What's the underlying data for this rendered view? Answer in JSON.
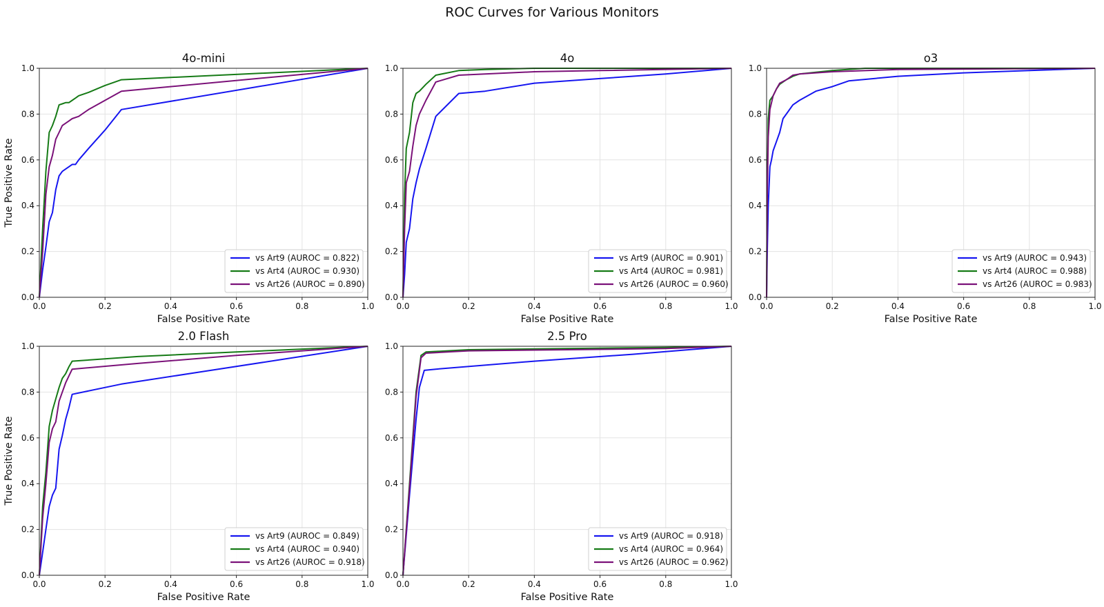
{
  "figure": {
    "title": "ROC Curves for Various Monitors"
  },
  "colors": {
    "Art9": "#1515f0",
    "Art4": "#157a15",
    "Art26": "#7a1078"
  },
  "chart_data": [
    {
      "type": "line",
      "title": "4o-mini",
      "xlabel": "False Positive Rate",
      "ylabel": "True Positive Rate",
      "xlim": [
        0,
        1
      ],
      "ylim": [
        0,
        1
      ],
      "xticks": [
        "0.0",
        "0.2",
        "0.4",
        "0.6",
        "0.8",
        "1.0"
      ],
      "yticks": [
        "0.0",
        "0.2",
        "0.4",
        "0.6",
        "0.8",
        "1.0"
      ],
      "grid": true,
      "legend_position": "lower-right",
      "series": [
        {
          "name": "vs Art9 (AUROC = 0.822)",
          "key": "Art9",
          "x": [
            0,
            0.01,
            0.02,
            0.03,
            0.04,
            0.05,
            0.06,
            0.07,
            0.08,
            0.09,
            0.1,
            0.11,
            0.12,
            0.15,
            0.2,
            0.25,
            1.0
          ],
          "y": [
            0,
            0.12,
            0.22,
            0.33,
            0.37,
            0.47,
            0.53,
            0.55,
            0.56,
            0.57,
            0.58,
            0.58,
            0.6,
            0.65,
            0.73,
            0.82,
            1.0
          ]
        },
        {
          "name": "vs Art4 (AUROC = 0.930)",
          "key": "Art4",
          "x": [
            0,
            0.01,
            0.02,
            0.03,
            0.04,
            0.05,
            0.06,
            0.07,
            0.08,
            0.09,
            0.1,
            0.11,
            0.12,
            0.15,
            0.2,
            0.25,
            1.0
          ],
          "y": [
            0,
            0.3,
            0.55,
            0.72,
            0.75,
            0.79,
            0.84,
            0.845,
            0.85,
            0.85,
            0.86,
            0.87,
            0.88,
            0.895,
            0.925,
            0.95,
            1.0
          ]
        },
        {
          "name": "vs Art26 (AUROC = 0.890)",
          "key": "Art26",
          "x": [
            0,
            0.01,
            0.02,
            0.03,
            0.04,
            0.05,
            0.06,
            0.07,
            0.08,
            0.09,
            0.1,
            0.12,
            0.15,
            0.2,
            0.25,
            1.0
          ],
          "y": [
            0,
            0.2,
            0.45,
            0.57,
            0.62,
            0.69,
            0.72,
            0.75,
            0.76,
            0.77,
            0.78,
            0.79,
            0.82,
            0.86,
            0.9,
            1.0
          ]
        }
      ]
    },
    {
      "type": "line",
      "title": "4o",
      "xlabel": "False Positive Rate",
      "ylabel": "",
      "xlim": [
        0,
        1
      ],
      "ylim": [
        0,
        1
      ],
      "xticks": [
        "0.0",
        "0.2",
        "0.4",
        "0.6",
        "0.8",
        "1.0"
      ],
      "yticks": [
        "0.0",
        "0.2",
        "0.4",
        "0.6",
        "0.8",
        "1.0"
      ],
      "grid": true,
      "legend_position": "lower-right",
      "series": [
        {
          "name": "vs Art9 (AUROC = 0.901)",
          "key": "Art9",
          "x": [
            0,
            0.005,
            0.01,
            0.02,
            0.03,
            0.04,
            0.05,
            0.07,
            0.1,
            0.17,
            0.25,
            0.4,
            0.6,
            0.8,
            1.0
          ],
          "y": [
            0,
            0.1,
            0.24,
            0.3,
            0.43,
            0.5,
            0.56,
            0.65,
            0.79,
            0.89,
            0.9,
            0.935,
            0.955,
            0.975,
            1.0
          ]
        },
        {
          "name": "vs Art4 (AUROC = 0.981)",
          "key": "Art4",
          "x": [
            0,
            0.005,
            0.01,
            0.02,
            0.03,
            0.04,
            0.05,
            0.07,
            0.1,
            0.17,
            0.25,
            0.4,
            1.0
          ],
          "y": [
            0,
            0.45,
            0.65,
            0.72,
            0.85,
            0.89,
            0.9,
            0.93,
            0.97,
            0.99,
            0.995,
            1.0,
            1.0
          ]
        },
        {
          "name": "vs Art26 (AUROC = 0.960)",
          "key": "Art26",
          "x": [
            0,
            0.005,
            0.01,
            0.02,
            0.03,
            0.04,
            0.05,
            0.07,
            0.1,
            0.17,
            0.25,
            0.4,
            0.6,
            1.0
          ],
          "y": [
            0,
            0.3,
            0.5,
            0.55,
            0.66,
            0.75,
            0.8,
            0.86,
            0.94,
            0.97,
            0.975,
            0.985,
            0.99,
            1.0
          ]
        }
      ]
    },
    {
      "type": "line",
      "title": "o3",
      "xlabel": "False Positive Rate",
      "ylabel": "",
      "xlim": [
        0,
        1
      ],
      "ylim": [
        0,
        1
      ],
      "xticks": [
        "0.0",
        "0.2",
        "0.4",
        "0.6",
        "0.8",
        "1.0"
      ],
      "yticks": [
        "0.0",
        "0.2",
        "0.4",
        "0.6",
        "0.8",
        "1.0"
      ],
      "grid": true,
      "legend_position": "lower-right",
      "series": [
        {
          "name": "vs Art9 (AUROC = 0.943)",
          "key": "Art9",
          "x": [
            0,
            0.002,
            0.005,
            0.01,
            0.015,
            0.02,
            0.03,
            0.04,
            0.05,
            0.06,
            0.08,
            0.1,
            0.15,
            0.2,
            0.25,
            0.4,
            0.6,
            0.8,
            1.0
          ],
          "y": [
            0,
            0.2,
            0.4,
            0.57,
            0.6,
            0.64,
            0.68,
            0.72,
            0.78,
            0.8,
            0.84,
            0.86,
            0.9,
            0.92,
            0.945,
            0.965,
            0.98,
            0.99,
            1.0
          ]
        },
        {
          "name": "vs Art4 (AUROC = 0.988)",
          "key": "Art4",
          "x": [
            0,
            0.002,
            0.005,
            0.01,
            0.02,
            0.03,
            0.04,
            0.06,
            0.08,
            0.1,
            0.2,
            0.3,
            1.0
          ],
          "y": [
            0,
            0.5,
            0.78,
            0.86,
            0.88,
            0.91,
            0.93,
            0.95,
            0.965,
            0.975,
            0.99,
            1.0,
            1.0
          ]
        },
        {
          "name": "vs Art26 (AUROC = 0.983)",
          "key": "Art26",
          "x": [
            0,
            0.002,
            0.005,
            0.01,
            0.02,
            0.03,
            0.04,
            0.06,
            0.08,
            0.1,
            0.2,
            0.4,
            1.0
          ],
          "y": [
            0,
            0.45,
            0.7,
            0.82,
            0.88,
            0.91,
            0.935,
            0.95,
            0.97,
            0.975,
            0.985,
            0.995,
            1.0
          ]
        }
      ]
    },
    {
      "type": "line",
      "title": "2.0 Flash",
      "xlabel": "False Positive Rate",
      "ylabel": "True Positive Rate",
      "xlim": [
        0,
        1
      ],
      "ylim": [
        0,
        1
      ],
      "xticks": [
        "0.0",
        "0.2",
        "0.4",
        "0.6",
        "0.8",
        "1.0"
      ],
      "yticks": [
        "0.0",
        "0.2",
        "0.4",
        "0.6",
        "0.8",
        "1.0"
      ],
      "grid": true,
      "legend_position": "lower-right",
      "series": [
        {
          "name": "vs Art9 (AUROC = 0.849)",
          "key": "Art9",
          "x": [
            0,
            0.01,
            0.02,
            0.03,
            0.04,
            0.05,
            0.06,
            0.07,
            0.08,
            0.09,
            0.1,
            0.25,
            0.5,
            0.75,
            1.0
          ],
          "y": [
            0,
            0.1,
            0.2,
            0.3,
            0.35,
            0.38,
            0.55,
            0.61,
            0.68,
            0.73,
            0.79,
            0.835,
            0.89,
            0.945,
            1.0
          ]
        },
        {
          "name": "vs Art4 (AUROC = 0.940)",
          "key": "Art4",
          "x": [
            0,
            0.01,
            0.02,
            0.03,
            0.04,
            0.05,
            0.06,
            0.07,
            0.08,
            0.09,
            0.1,
            0.3,
            0.6,
            1.0
          ],
          "y": [
            0,
            0.3,
            0.45,
            0.65,
            0.72,
            0.77,
            0.82,
            0.86,
            0.88,
            0.91,
            0.935,
            0.955,
            0.975,
            1.0
          ]
        },
        {
          "name": "vs Art26 (AUROC = 0.918)",
          "key": "Art26",
          "x": [
            0,
            0.01,
            0.02,
            0.03,
            0.04,
            0.05,
            0.06,
            0.07,
            0.08,
            0.09,
            0.1,
            0.3,
            0.6,
            1.0
          ],
          "y": [
            0,
            0.25,
            0.4,
            0.58,
            0.64,
            0.67,
            0.76,
            0.8,
            0.84,
            0.87,
            0.9,
            0.925,
            0.96,
            1.0
          ]
        }
      ]
    },
    {
      "type": "line",
      "title": "2.5 Pro",
      "xlabel": "False Positive Rate",
      "ylabel": "",
      "xlim": [
        0,
        1
      ],
      "ylim": [
        0,
        1
      ],
      "xticks": [
        "0.0",
        "0.2",
        "0.4",
        "0.6",
        "0.8",
        "1.0"
      ],
      "yticks": [
        "0.0",
        "0.2",
        "0.4",
        "0.6",
        "0.8",
        "1.0"
      ],
      "grid": true,
      "legend_position": "lower-right",
      "series": [
        {
          "name": "vs Art9 (AUROC = 0.918)",
          "key": "Art9",
          "x": [
            0,
            0.02,
            0.04,
            0.05,
            0.065,
            0.1,
            0.4,
            0.7,
            1.0
          ],
          "y": [
            0,
            0.35,
            0.68,
            0.82,
            0.895,
            0.9,
            0.935,
            0.965,
            1.0
          ]
        },
        {
          "name": "vs Art4 (AUROC = 0.964)",
          "key": "Art4",
          "x": [
            0,
            0.02,
            0.04,
            0.055,
            0.07,
            0.2,
            0.5,
            0.8,
            1.0
          ],
          "y": [
            0,
            0.4,
            0.8,
            0.96,
            0.975,
            0.985,
            0.99,
            0.995,
            1.0
          ]
        },
        {
          "name": "vs Art26 (AUROC = 0.962)",
          "key": "Art26",
          "x": [
            0,
            0.02,
            0.04,
            0.055,
            0.07,
            0.2,
            0.5,
            0.8,
            1.0
          ],
          "y": [
            0,
            0.38,
            0.78,
            0.95,
            0.97,
            0.98,
            0.985,
            0.99,
            1.0
          ]
        }
      ]
    }
  ]
}
